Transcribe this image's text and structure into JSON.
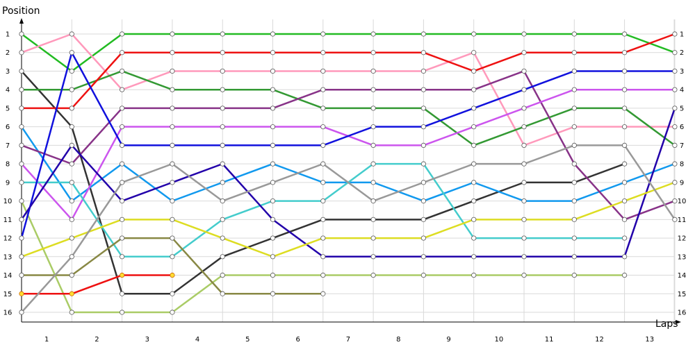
{
  "chart_data": {
    "type": "line",
    "ylabel": "Position",
    "xlabel": "Laps",
    "x_tick_labels": [
      "1",
      "2",
      "3",
      "4",
      "5",
      "6",
      "7",
      "8",
      "9",
      "10",
      "11",
      "12",
      "13"
    ],
    "y_tick_labels": [
      "1",
      "2",
      "3",
      "4",
      "5",
      "6",
      "7",
      "8",
      "9",
      "10",
      "11",
      "12",
      "13",
      "14",
      "15",
      "16"
    ],
    "x_range": [
      0,
      13.6
    ],
    "y_range": [
      1,
      16
    ],
    "y_inverted": true,
    "grid": true,
    "y_labels_both_sides": true,
    "series": [
      {
        "color": "#22bb22",
        "values": [
          1,
          3,
          1,
          1,
          1,
          1,
          1,
          1,
          1,
          1,
          1,
          1,
          1,
          2
        ]
      },
      {
        "color": "#ff99bb",
        "values": [
          2,
          1,
          4,
          3,
          3,
          3,
          3,
          3,
          3,
          2,
          7,
          6,
          6,
          6
        ]
      },
      {
        "color": "#333333",
        "values": [
          3,
          6,
          15,
          15,
          13,
          12,
          11,
          11,
          11,
          10,
          9,
          9,
          8,
          null
        ]
      },
      {
        "color": "#339933",
        "values": [
          4,
          4,
          3,
          4,
          4,
          4,
          5,
          5,
          5,
          7,
          6,
          5,
          5,
          7
        ]
      },
      {
        "color": "#ee1111",
        "values": [
          5,
          5,
          2,
          2,
          2,
          2,
          2,
          2,
          2,
          3,
          2,
          2,
          2,
          1
        ]
      },
      {
        "color": "#1199ee",
        "values": [
          6,
          10,
          8,
          10,
          9,
          8,
          9,
          9,
          10,
          9,
          10,
          10,
          9,
          8
        ]
      },
      {
        "color": "#883388",
        "values": [
          7,
          8,
          5,
          5,
          5,
          5,
          4,
          4,
          4,
          4,
          3,
          8,
          11,
          10
        ]
      },
      {
        "color": "#cc55ee",
        "values": [
          8,
          11,
          6,
          6,
          6,
          6,
          6,
          7,
          7,
          6,
          5,
          4,
          4,
          4
        ]
      },
      {
        "color": "#44cccc",
        "values": [
          9,
          9,
          13,
          13,
          11,
          10,
          10,
          8,
          8,
          12,
          12,
          12,
          12,
          null
        ]
      },
      {
        "color": "#aacc66",
        "values": [
          10,
          16,
          16,
          16,
          14,
          14,
          14,
          14,
          14,
          14,
          14,
          14,
          14,
          null
        ]
      },
      {
        "color": "#1111dd",
        "values": [
          12,
          2,
          7,
          7,
          7,
          7,
          7,
          6,
          6,
          5,
          4,
          3,
          3,
          3
        ]
      },
      {
        "color": "#2200aa",
        "values": [
          11,
          7,
          10,
          9,
          8,
          11,
          13,
          13,
          13,
          13,
          13,
          13,
          13,
          5
        ]
      },
      {
        "color": "#dddd22",
        "values": [
          13,
          12,
          11,
          11,
          12,
          13,
          12,
          12,
          12,
          11,
          11,
          11,
          10,
          9
        ]
      },
      {
        "color": "#888844",
        "values": [
          14,
          14,
          12,
          12,
          15,
          15,
          15,
          null,
          null,
          null,
          null,
          null,
          null,
          null
        ]
      },
      {
        "color": "#ee1111",
        "values": [
          15,
          15,
          14,
          14,
          null,
          null,
          null,
          null,
          null,
          null,
          null,
          null,
          null,
          null
        ]
      },
      {
        "color": "#999999",
        "values": [
          16,
          13,
          9,
          8,
          10,
          9,
          8,
          10,
          9,
          8,
          8,
          7,
          7,
          11
        ]
      }
    ]
  }
}
